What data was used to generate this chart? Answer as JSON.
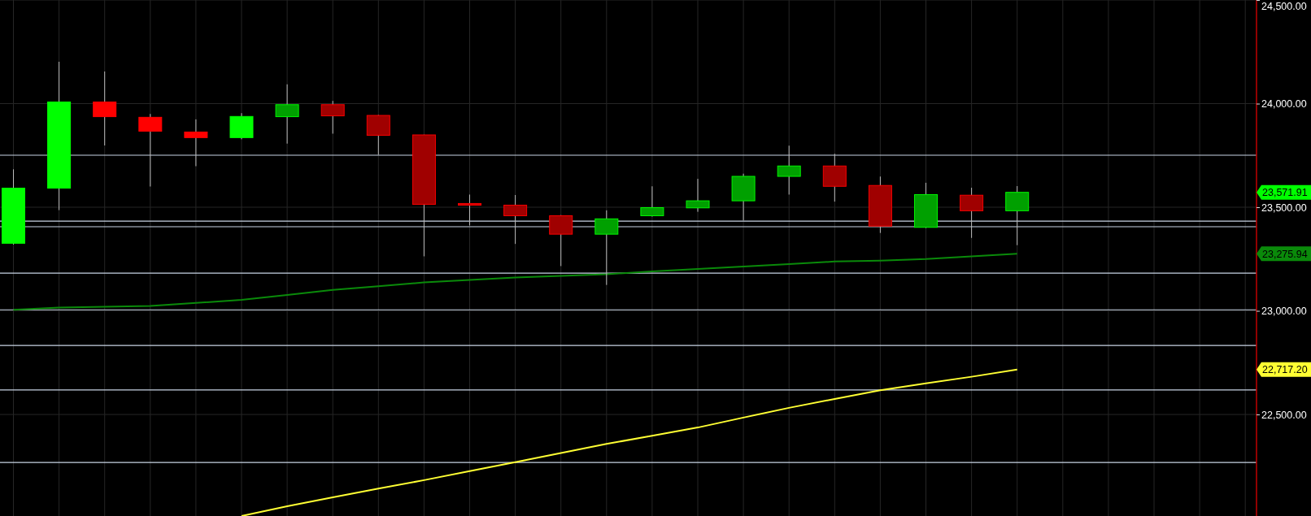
{
  "chart_data": {
    "type": "candlestick",
    "categories": [
      null,
      null,
      null,
      null,
      null,
      null,
      null,
      null,
      null,
      null,
      null,
      null,
      null,
      null,
      null,
      null,
      null,
      null,
      null,
      null,
      null,
      null,
      null,
      null,
      null,
      null,
      null,
      null
    ],
    "ohlc": [
      [
        23326,
        23683,
        23320,
        23592
      ],
      [
        23592,
        24202,
        23486,
        24008
      ],
      [
        24008,
        24155,
        23798,
        23937
      ],
      [
        23934,
        23950,
        23600,
        23867
      ],
      [
        23863,
        23924,
        23698,
        23836
      ],
      [
        23836,
        23954,
        23828,
        23938
      ],
      [
        23937,
        24093,
        23807,
        23995
      ],
      [
        23995,
        24013,
        23855,
        23941
      ],
      [
        23943,
        23945,
        23753,
        23847
      ],
      [
        23849,
        23850,
        23263,
        23514
      ],
      [
        23518,
        23561,
        23412,
        23514
      ],
      [
        23510,
        23559,
        23323,
        23459
      ],
      [
        23459,
        23462,
        23216,
        23370
      ],
      [
        23370,
        23485,
        23125,
        23444
      ],
      [
        23459,
        23601,
        23455,
        23498
      ],
      [
        23497,
        23637,
        23478,
        23531
      ],
      [
        23531,
        23662,
        23436,
        23649
      ],
      [
        23649,
        23797,
        23561,
        23699
      ],
      [
        23699,
        23758,
        23527,
        23601
      ],
      [
        23605,
        23648,
        23376,
        23409
      ],
      [
        23403,
        23618,
        23400,
        23561
      ],
      [
        23558,
        23594,
        23352,
        23483
      ],
      [
        23483,
        23602,
        23317,
        23571.91
      ],
      null,
      null,
      null,
      null,
      null
    ],
    "colors": [
      "#00ff00",
      "#00ff00",
      "#ff0000",
      "#ff0000",
      "#ff0000",
      "#00ff00",
      "#00a000",
      "#a00000",
      "#a00000",
      "#a00000",
      "#cc0000",
      "#a00000",
      "#a00000",
      "#00a000",
      "#00a000",
      "#00a000",
      "#00a000",
      "#00a000",
      "#a00000",
      "#a00000",
      "#00a000",
      "#a00000",
      "#00a000",
      null,
      null,
      null,
      null,
      null
    ],
    "series": [
      {
        "type": "line",
        "color": "#0a8a0a",
        "values": [
          23005,
          23016,
          23020,
          23024,
          23038,
          23053,
          23077,
          23101,
          23119,
          23137,
          23149,
          23161,
          23169,
          23177,
          23190,
          23202,
          23214,
          23226,
          23238,
          23242,
          23250,
          23263,
          23275.94,
          null,
          null,
          null,
          null,
          null
        ]
      },
      {
        "type": "line",
        "color": "#ffff33",
        "values": [
          null,
          null,
          null,
          null,
          null,
          22010,
          22057,
          22100,
          22142,
          22183,
          22227,
          22270,
          22314,
          22358,
          22397,
          22437,
          22485,
          22532,
          22575,
          22617,
          22650,
          22682,
          22717.2,
          null,
          null,
          null,
          null,
          null
        ]
      }
    ],
    "ref_lines": [
      {
        "axis": "y",
        "value": 23751,
        "color": "#c8d4e4"
      },
      {
        "axis": "y",
        "value": 23433,
        "color": "#c8d4e4"
      },
      {
        "axis": "y",
        "value": 23406,
        "color": "#c8d4e4"
      },
      {
        "axis": "y",
        "value": 23182,
        "color": "#c8d4e4"
      },
      {
        "axis": "y",
        "value": 23005,
        "color": "#c8d4e4"
      },
      {
        "axis": "y",
        "value": 22833,
        "color": "#c8d4e4"
      },
      {
        "axis": "y",
        "value": 22618,
        "color": "#c8d4e4"
      },
      {
        "axis": "y",
        "value": 22268,
        "color": "#c8d4e4"
      }
    ],
    "annotations": [
      "23,571.91",
      "23,275.94",
      "22,717.20"
    ],
    "ylim": [
      22010,
      24500
    ],
    "yticks": [
      {
        "value": 22500,
        "label": "22,500.00"
      },
      {
        "value": 23000,
        "label": "23,000.00"
      },
      {
        "value": 23500,
        "label": "23,500.00"
      },
      {
        "value": 24000,
        "label": "24,000.00"
      },
      {
        "value": 24500,
        "label": "24,500.00"
      }
    ],
    "grid": true,
    "tick_labels": "y"
  }
}
